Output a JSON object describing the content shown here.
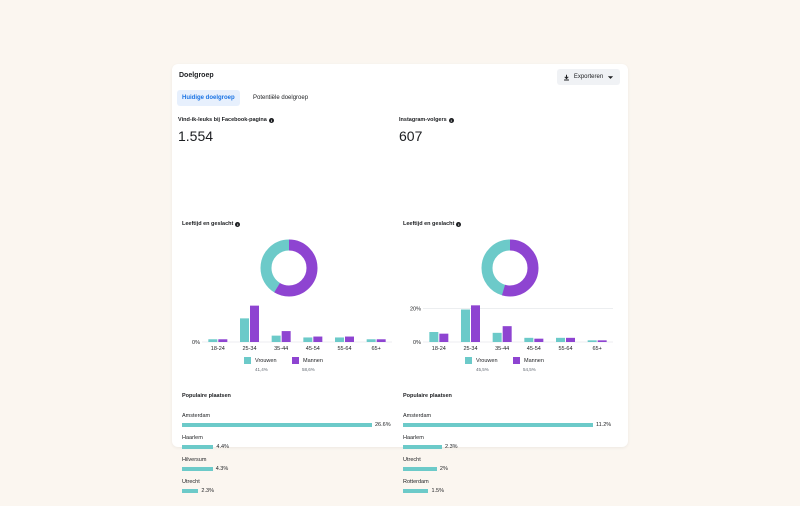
{
  "header": {
    "title": "Doelgroep",
    "export_label": "Exporteren"
  },
  "tabs": [
    {
      "label": "Huidige doelgroep",
      "active": true
    },
    {
      "label": "Potentiële doelgroep",
      "active": false
    }
  ],
  "colors": {
    "women": "#6ccac9",
    "men": "#8e44d1"
  },
  "sections": [
    {
      "metric_label": "Vind-ik-leuks bij Facebook-pagina",
      "metric_value": "1.554",
      "age_gender_label": "Leeftijd en geslacht",
      "legend": {
        "women_label": "Vrouwen",
        "women_pct": "41,4%",
        "men_label": "Mannen",
        "men_pct": "58,6%"
      },
      "donut": {
        "women": 41.4,
        "men": 58.6
      },
      "chart_data": {
        "type": "bar",
        "categories": [
          "18-24",
          "25-34",
          "35-44",
          "45-54",
          "55-64",
          "65+"
        ],
        "series": [
          {
            "name": "Vrouwen",
            "values": [
              1.5,
              13,
              3.5,
              2.5,
              2.5,
              1.5
            ]
          },
          {
            "name": "Mannen",
            "values": [
              1.5,
              20,
              6,
              3,
              3,
              1.5
            ]
          }
        ],
        "y_tick_labels": [
          "0%"
        ],
        "ylim": [
          0,
          22
        ]
      },
      "places_label": "Populaire plaatsen",
      "places": [
        {
          "name": "Amsterdam",
          "value_label": "26.6%",
          "value": 26.6
        },
        {
          "name": "Haarlem",
          "value_label": "4.4%",
          "value": 4.4
        },
        {
          "name": "Hilversum",
          "value_label": "4.3%",
          "value": 4.3
        },
        {
          "name": "Utrecht",
          "value_label": "2.3%",
          "value": 2.3
        }
      ]
    },
    {
      "metric_label": "Instagram-volgers",
      "metric_value": "607",
      "age_gender_label": "Leeftijd en geslacht",
      "legend": {
        "women_label": "Vrouwen",
        "women_pct": "45,5%",
        "men_label": "Mannen",
        "men_pct": "54,5%"
      },
      "donut": {
        "women": 45.5,
        "men": 54.5
      },
      "chart_data": {
        "type": "bar",
        "categories": [
          "18-24",
          "25-34",
          "35-44",
          "45-54",
          "55-64",
          "65+"
        ],
        "series": [
          {
            "name": "Vrouwen",
            "values": [
              6,
              19.5,
              5.5,
              2.5,
              2.5,
              1
            ]
          },
          {
            "name": "Mannen",
            "values": [
              5,
              22,
              9.5,
              2,
              2.5,
              1
            ]
          }
        ],
        "y_tick_labels": [
          "0%",
          "20%"
        ],
        "ylim": [
          0,
          24
        ]
      },
      "places_label": "Populaire plaatsen",
      "places": [
        {
          "name": "Amsterdam",
          "value_label": "11.2%",
          "value": 11.2
        },
        {
          "name": "Haarlem",
          "value_label": "2.3%",
          "value": 2.3
        },
        {
          "name": "Utrecht",
          "value_label": "2%",
          "value": 2
        },
        {
          "name": "Rotterdam",
          "value_label": "1.5%",
          "value": 1.5
        }
      ]
    }
  ]
}
